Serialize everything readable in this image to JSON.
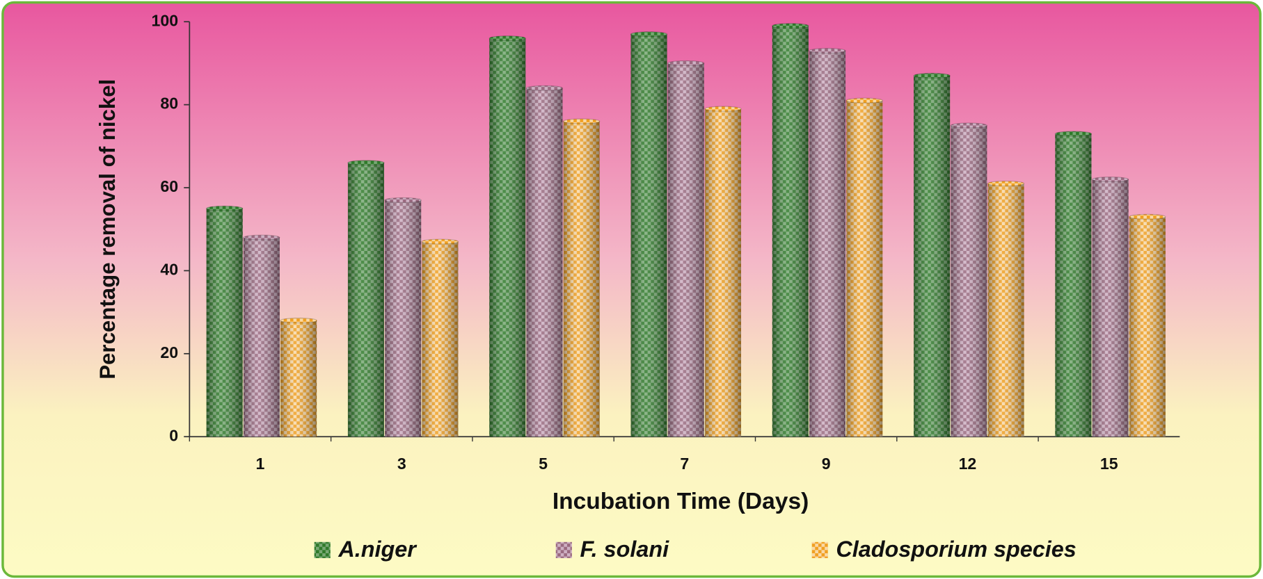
{
  "chart_data": {
    "type": "bar",
    "x_label": "Incubation Time (Days)",
    "y_label": "Percentage removal of nickel",
    "categories": [
      "1",
      "3",
      "5",
      "7",
      "9",
      "12",
      "15"
    ],
    "series": [
      {
        "name": "A.niger",
        "color": "#2f7a2a",
        "values": [
          55,
          66,
          96,
          97,
          99,
          87,
          73
        ]
      },
      {
        "name": "F. solani",
        "color": "#9a6a80",
        "values": [
          48,
          57,
          84,
          90,
          93,
          75,
          62
        ]
      },
      {
        "name": "Cladosporium species",
        "color": "#f0a022",
        "values": [
          28,
          47,
          76,
          79,
          81,
          61,
          53
        ]
      }
    ],
    "ylim": [
      0,
      100
    ],
    "yticks": [
      0,
      20,
      40,
      60,
      80,
      100
    ],
    "legend": "bottom"
  }
}
